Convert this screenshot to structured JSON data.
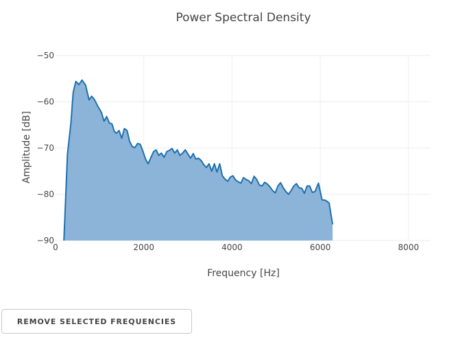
{
  "chart_data": {
    "type": "area",
    "title": "Power Spectral Density",
    "xlabel": "Frequency [Hz]",
    "ylabel": "Amplitude [dB]",
    "xlim": [
      0,
      8500
    ],
    "ylim": [
      -90,
      -50
    ],
    "xticks": [
      0,
      2000,
      4000,
      6000,
      8000
    ],
    "yticks": [
      -50,
      -60,
      -70,
      -80,
      -90
    ],
    "grid": true,
    "fill_color": "#8cb4d9",
    "line_color": "#1f6fad",
    "series": [
      {
        "x": [
          190,
          270,
          350,
          400,
          460,
          530,
          600,
          680,
          760,
          820,
          880,
          960,
          1040,
          1100,
          1160,
          1220,
          1280,
          1330,
          1380,
          1440,
          1500,
          1560,
          1620,
          1680,
          1740,
          1800,
          1860,
          1920,
          1980,
          2040,
          2100,
          2160,
          2220,
          2280,
          2340,
          2400,
          2460,
          2520,
          2580,
          2640,
          2700,
          2760,
          2820,
          2880,
          2940,
          3000,
          3060,
          3120,
          3180,
          3240,
          3300,
          3360,
          3420,
          3480,
          3540,
          3600,
          3660,
          3720,
          3780,
          3840,
          3900,
          3960,
          4020,
          4080,
          4140,
          4200,
          4260,
          4320,
          4380,
          4440,
          4500,
          4560,
          4620,
          4680,
          4740,
          4800,
          4860,
          4920,
          4980,
          5040,
          5100,
          5160,
          5220,
          5280,
          5340,
          5400,
          5460,
          5520,
          5580,
          5640,
          5700,
          5760,
          5820,
          5880,
          5960,
          6040,
          6120,
          6200,
          6280
        ],
        "y": [
          -90,
          -71.3,
          -64.5,
          -58,
          -55.6,
          -56.3,
          -55.3,
          -56.4,
          -59.6,
          -58.8,
          -59.5,
          -61,
          -62.3,
          -64.2,
          -63.2,
          -64.6,
          -64.8,
          -66.4,
          -66.8,
          -66.2,
          -67.9,
          -65.8,
          -66.2,
          -68.6,
          -69.7,
          -69.9,
          -69,
          -69.2,
          -70.7,
          -72.4,
          -73.4,
          -72.1,
          -70.8,
          -70.4,
          -71.6,
          -71.1,
          -72,
          -70.8,
          -70.5,
          -70.1,
          -71.1,
          -70.4,
          -71.6,
          -71.1,
          -70.4,
          -71.3,
          -72.2,
          -71.2,
          -72.4,
          -72.2,
          -72.7,
          -73.6,
          -74.2,
          -73.4,
          -75,
          -73.4,
          -75.2,
          -73.4,
          -76,
          -76.7,
          -77.2,
          -76.3,
          -76,
          -76.9,
          -77.3,
          -77.6,
          -76.4,
          -76.8,
          -77.1,
          -77.7,
          -76.1,
          -76.8,
          -78,
          -78.2,
          -77.4,
          -77.8,
          -78.4,
          -79.2,
          -79.7,
          -78.2,
          -77.5,
          -78.6,
          -79.4,
          -80,
          -79.2,
          -78.2,
          -77.7,
          -78.6,
          -78.7,
          -79.8,
          -78.2,
          -78.2,
          -79.6,
          -79.4,
          -77.6,
          -81.2,
          -81.3,
          -81.9,
          -86.5
        ]
      }
    ]
  },
  "controls": {
    "remove_button_label": "REMOVE SELECTED FREQUENCIES"
  }
}
